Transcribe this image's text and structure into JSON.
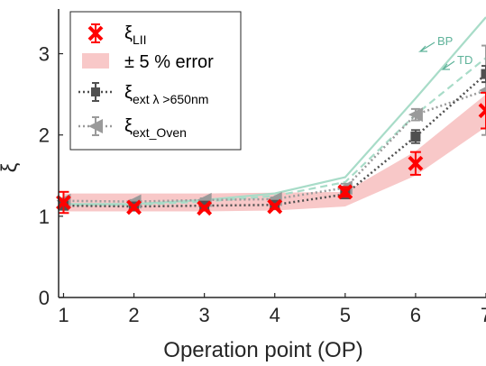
{
  "chart_data": {
    "type": "line",
    "title": "",
    "xlabel": "Operation point (OP)",
    "ylabel": "ξ",
    "xlim": [
      0.93,
      7
    ],
    "ylim": [
      0,
      3.55
    ],
    "x_ticks": [
      "1",
      "2",
      "3",
      "4",
      "5",
      "6",
      "7"
    ],
    "y_ticks": [
      "0",
      "1",
      "2",
      "3"
    ],
    "grid": false,
    "legend_position": "top-left",
    "x": [
      1,
      2,
      3,
      4,
      5,
      6,
      7
    ],
    "series": [
      {
        "name": "ξ",
        "name_sub": "LII",
        "marker": "x",
        "color": "#ff0000",
        "values": [
          1.17,
          1.11,
          1.1,
          1.12,
          1.3,
          1.65,
          2.3
        ],
        "err": [
          0.13,
          0.03,
          0.03,
          0.03,
          0.06,
          0.14,
          0.22
        ]
      },
      {
        "name": "± 5 % error",
        "type": "band",
        "color": "#f8c8c8",
        "lower": [
          1.06,
          1.06,
          1.06,
          1.07,
          1.12,
          1.5,
          2.1
        ],
        "upper": [
          1.28,
          1.28,
          1.28,
          1.29,
          1.3,
          1.8,
          2.5
        ]
      },
      {
        "name": "ξ",
        "name_sub": "ext λ >650nm",
        "marker": "square",
        "color": "#505050",
        "values": [
          1.13,
          1.12,
          1.13,
          1.14,
          1.27,
          1.98,
          2.75
        ],
        "err": [
          0.03,
          0.02,
          0.02,
          0.02,
          0.05,
          0.08,
          0.1
        ]
      },
      {
        "name": "ξ",
        "name_sub": "ext_Oven",
        "marker": "triangle-left",
        "color": "#9a9a9a",
        "values": [
          1.19,
          1.18,
          1.2,
          1.21,
          1.35,
          2.25,
          2.55
        ],
        "err": [
          0.03,
          0.02,
          0.02,
          0.02,
          0.05,
          0.07,
          0.55
        ]
      },
      {
        "name": "BP",
        "line_style": "solid",
        "color": "#a8dcc8",
        "values": [
          1.15,
          1.15,
          1.2,
          1.28,
          1.48,
          2.45,
          3.45
        ]
      },
      {
        "name": "TD",
        "line_style": "dashed",
        "color": "#a8dcc8",
        "values": [
          1.14,
          1.14,
          1.18,
          1.25,
          1.42,
          2.25,
          2.95
        ]
      }
    ],
    "annotations": [
      {
        "text": "BP",
        "color": "#5fb39a"
      },
      {
        "text": "TD",
        "color": "#5fb39a"
      }
    ]
  }
}
